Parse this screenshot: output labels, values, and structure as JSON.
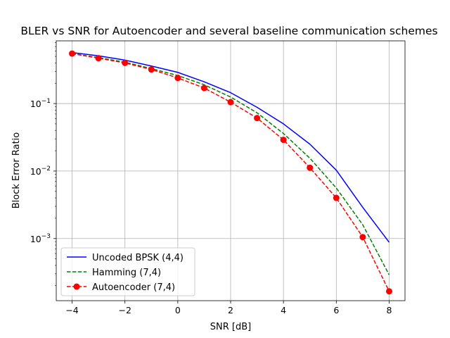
{
  "chart_data": {
    "type": "line",
    "title": "BLER vs SNR for Autoencoder and several baseline communication schemes",
    "xlabel": "SNR [dB]",
    "ylabel": "Block Error Ratio",
    "xlim": [
      -4.6,
      8.6
    ],
    "ylim": [
      0.00012,
      0.85
    ],
    "yscale": "log",
    "grid": true,
    "legend_position": "lower-left",
    "x_ticks": [
      -4,
      -2,
      0,
      2,
      4,
      6,
      8
    ],
    "x_tick_labels": [
      "−4",
      "−2",
      "0",
      "2",
      "4",
      "6",
      "8"
    ],
    "y_ticks": [
      0.001,
      0.01,
      0.1
    ],
    "y_tick_labels": [
      {
        "base": "10",
        "exp": "−3"
      },
      {
        "base": "10",
        "exp": "−2"
      },
      {
        "base": "10",
        "exp": "−1"
      }
    ],
    "series": [
      {
        "name": "Uncoded BPSK (4,4)",
        "color": "#0000ff",
        "style": "solid",
        "marker": "none",
        "x": [
          -4,
          -3,
          -2,
          -1,
          0,
          1,
          2,
          3,
          4,
          5,
          6,
          7,
          8
        ],
        "values": [
          0.57,
          0.51,
          0.44,
          0.36,
          0.29,
          0.21,
          0.145,
          0.088,
          0.05,
          0.025,
          0.0103,
          0.0029,
          0.00088
        ]
      },
      {
        "name": "Hamming (7,4)",
        "color": "#008000",
        "style": "dashed",
        "marker": "none",
        "x": [
          -4,
          -3,
          -2,
          -1,
          0,
          1,
          2,
          3,
          4,
          5,
          6,
          7,
          8
        ],
        "values": [
          0.55,
          0.48,
          0.41,
          0.33,
          0.26,
          0.19,
          0.125,
          0.073,
          0.036,
          0.0155,
          0.0056,
          0.0016,
          0.00029
        ]
      },
      {
        "name": "Autoencoder (7,4)",
        "color": "#ff0000",
        "style": "dashed",
        "marker": "circle",
        "x": [
          -4,
          -3,
          -2,
          -1,
          0,
          1,
          2,
          3,
          4,
          5,
          6,
          7,
          8
        ],
        "values": [
          0.55,
          0.47,
          0.4,
          0.32,
          0.24,
          0.17,
          0.105,
          0.061,
          0.029,
          0.0112,
          0.004,
          0.00105,
          0.000165
        ]
      }
    ]
  }
}
